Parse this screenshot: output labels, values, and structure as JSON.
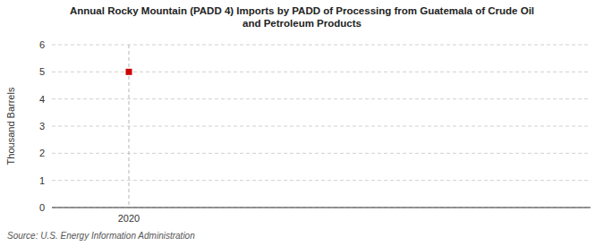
{
  "chart_data": {
    "type": "scatter",
    "title": "Annual Rocky Mountain (PADD 4) Imports by PADD of Processing from Guatemala of Crude Oil\nand Petroleum Products",
    "ylabel": "Thousand Barrels",
    "source": "Source: U.S. Energy Information Administration",
    "x": [
      2020
    ],
    "values": [
      5
    ],
    "color": "#cc0000",
    "marker": "square",
    "xlim": [
      2019.6,
      2022.4
    ],
    "xticks": [
      2020
    ],
    "ylim": [
      0,
      6
    ],
    "yticks": [
      0,
      1,
      2,
      3,
      4,
      5,
      6
    ],
    "grid": true
  }
}
